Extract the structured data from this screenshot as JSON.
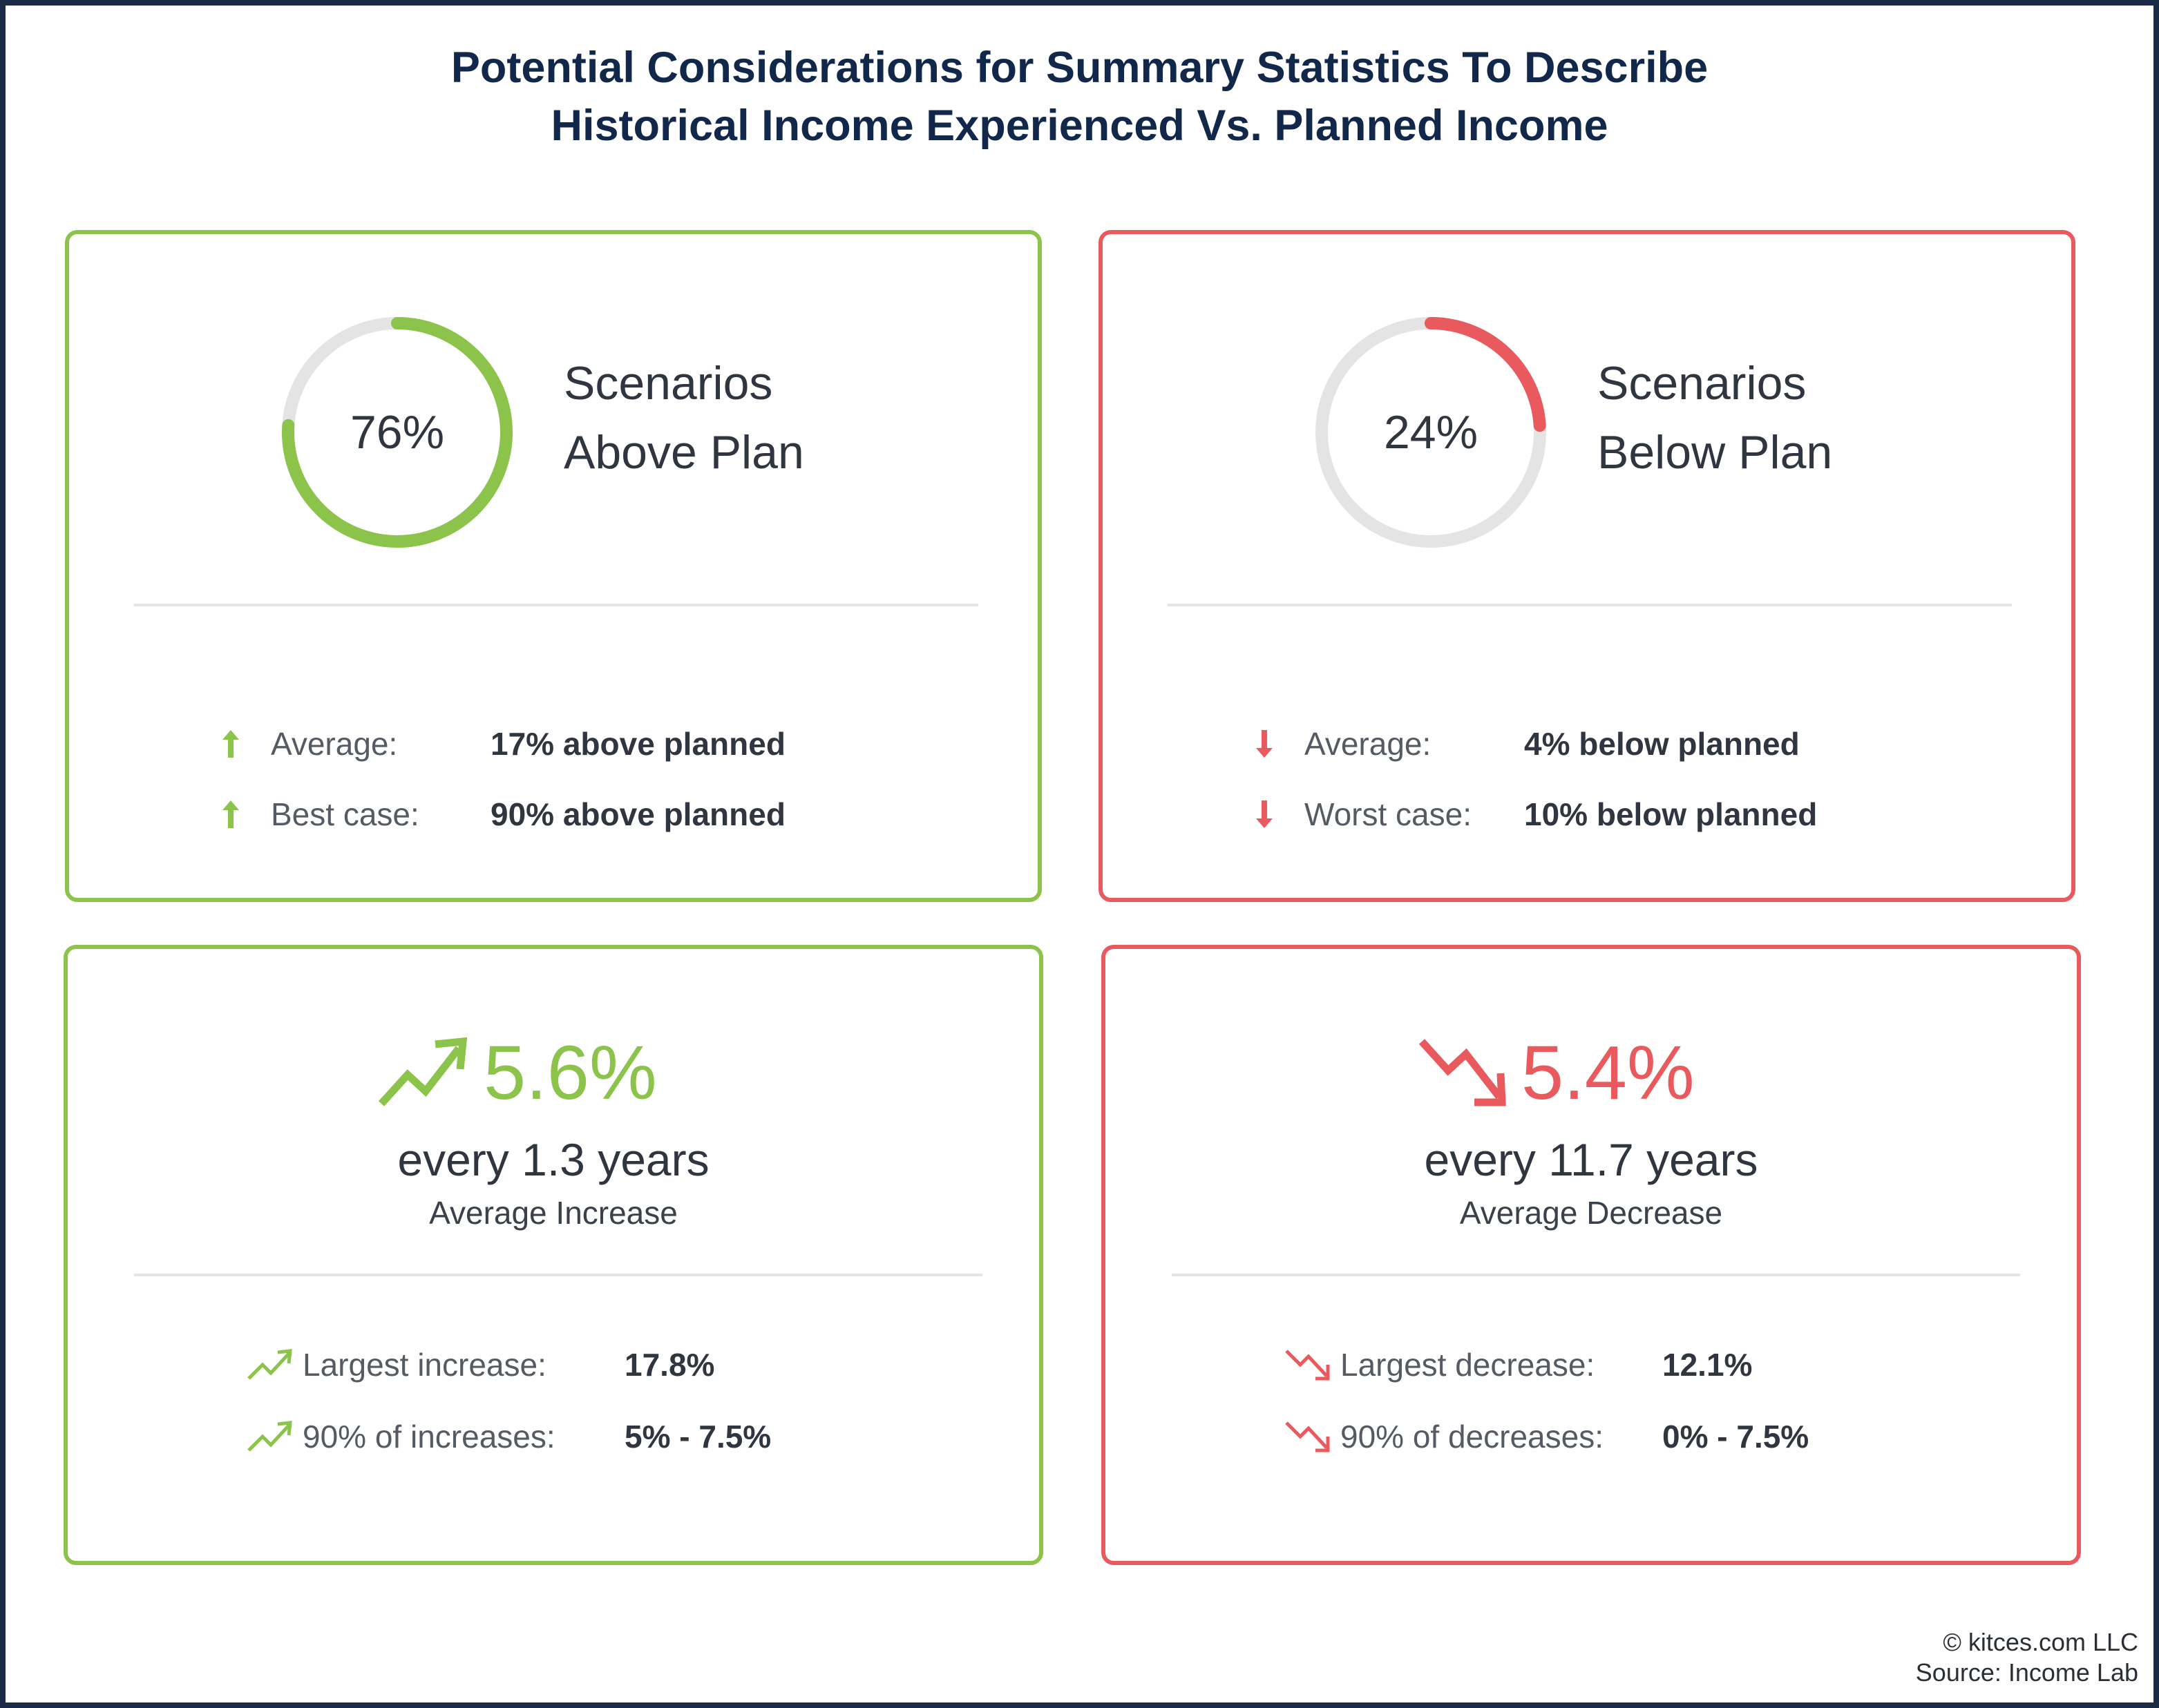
{
  "title": {
    "line1": "Potential Considerations for Summary Statistics To Describe",
    "line2": "Historical Income Experienced Vs. Planned Income"
  },
  "colors": {
    "green": "#8cc34a",
    "red": "#e85a5d",
    "navy": "#12284a",
    "track": "#e4e4e4"
  },
  "above": {
    "percent_label": "76%",
    "percent_value": 76,
    "heading_line1": "Scenarios",
    "heading_line2": "Above Plan",
    "stats": [
      {
        "icon": "up-arrow-icon",
        "label": "Average:",
        "value": "17% above planned"
      },
      {
        "icon": "up-arrow-icon",
        "label": "Best case:",
        "value": "90% above planned"
      }
    ]
  },
  "below": {
    "percent_label": "24%",
    "percent_value": 24,
    "heading_line1": "Scenarios",
    "heading_line2": "Below Plan",
    "stats": [
      {
        "icon": "down-arrow-icon",
        "label": "Average:",
        "value": "4% below planned"
      },
      {
        "icon": "down-arrow-icon",
        "label": "Worst case:",
        "value": "10% below planned"
      }
    ]
  },
  "increase": {
    "icon": "trend-up-icon",
    "value": "5.6%",
    "frequency": "every 1.3 years",
    "caption": "Average Increase",
    "stats": [
      {
        "icon": "trend-up-icon",
        "label": "Largest increase:",
        "value": "17.8%"
      },
      {
        "icon": "trend-up-icon",
        "label": "90% of increases:",
        "value": "5% - 7.5%"
      }
    ]
  },
  "decrease": {
    "icon": "trend-down-icon",
    "value": "5.4%",
    "frequency": "every 11.7 years",
    "caption": "Average Decrease",
    "stats": [
      {
        "icon": "trend-down-icon",
        "label": "Largest decrease:",
        "value": "12.1%"
      },
      {
        "icon": "trend-down-icon",
        "label": "90% of decreases:",
        "value": "0% - 7.5%"
      }
    ]
  },
  "footer": {
    "copyright": "© kitces.com LLC",
    "source": "Source: Income Lab"
  }
}
